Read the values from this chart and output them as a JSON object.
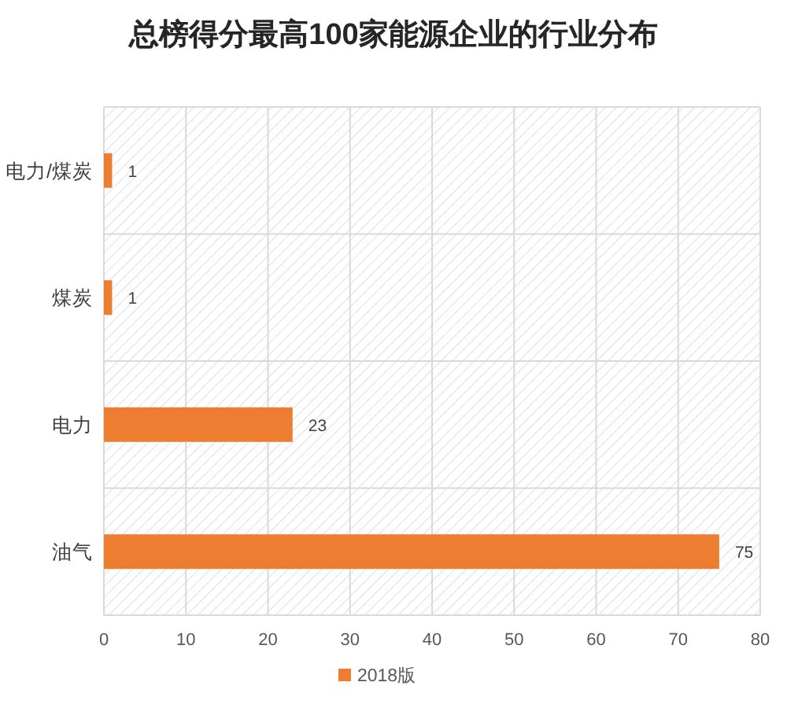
{
  "chart_data": {
    "type": "bar",
    "title": "总榜得分最高100家能源企业的行业分布",
    "categories": [
      "电力/煤炭",
      "煤炭",
      "电力",
      "油气"
    ],
    "orientation": "horizontal",
    "series": [
      {
        "name": "2018版",
        "color": "#ed7d31",
        "values": [
          1,
          1,
          23,
          75
        ]
      }
    ],
    "xlim": [
      0,
      80
    ],
    "xticks": [
      0,
      10,
      20,
      30,
      40,
      50,
      60,
      70,
      80
    ],
    "grid": true,
    "legend": "bottom",
    "data_labels": true
  }
}
